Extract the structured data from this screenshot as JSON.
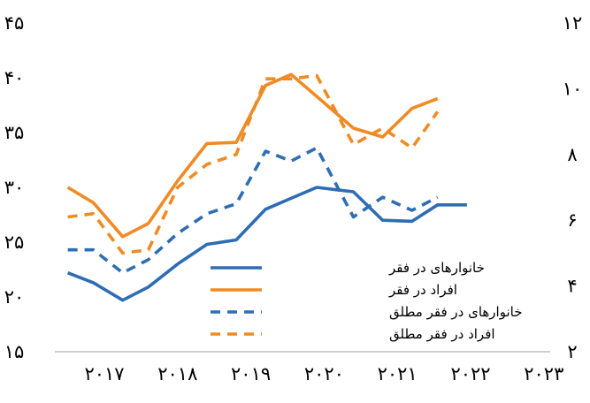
{
  "chart_data": {
    "type": "line",
    "title": "",
    "xlabel": "",
    "ylabel": "",
    "x": [
      2016.5,
      2016.85,
      2017.25,
      2017.6,
      2018.0,
      2018.4,
      2018.8,
      2019.2,
      2019.55,
      2019.9,
      2020.4,
      2020.8,
      2021.2,
      2021.55,
      2021.95,
      2022.4,
      2022.8,
      2023.2
    ],
    "x_ticks": [
      {
        "value": 2017,
        "label": "۲۰۱۷"
      },
      {
        "value": 2018,
        "label": "۲۰۱۸"
      },
      {
        "value": 2019,
        "label": "۲۰۱۹"
      },
      {
        "value": 2020,
        "label": "۲۰۲۰"
      },
      {
        "value": 2021,
        "label": "۲۰۲۱"
      },
      {
        "value": 2022,
        "label": "۲۰۲۲"
      },
      {
        "value": 2023,
        "label": "۲۰۲۳"
      }
    ],
    "y_left": {
      "range": [
        15,
        45
      ],
      "ticks": [
        {
          "value": 45,
          "label": "۴۵"
        },
        {
          "value": 40,
          "label": "۴۰"
        },
        {
          "value": 35,
          "label": "۳۵"
        },
        {
          "value": 30,
          "label": "۳۰"
        },
        {
          "value": 25,
          "label": "۲۵"
        },
        {
          "value": 20,
          "label": "۲۰"
        },
        {
          "value": 15,
          "label": "۱۵"
        }
      ]
    },
    "y_right": {
      "range": [
        2,
        12
      ],
      "ticks": [
        {
          "value": 12,
          "label": "۱۲"
        },
        {
          "value": 10,
          "label": "۱۰"
        },
        {
          "value": 8,
          "label": "۸"
        },
        {
          "value": 6,
          "label": "۶"
        },
        {
          "value": 4,
          "label": "۴"
        },
        {
          "value": 2,
          "label": "۲"
        }
      ]
    },
    "grid": false,
    "legend_position": "bottom-center",
    "series": [
      {
        "name": "خانوارهای در فقر",
        "color": "#2E6DB4",
        "style": "solid",
        "axis": "left",
        "values": [
          22.2,
          21.3,
          19.7,
          20.9,
          23.0,
          24.8,
          25.2,
          28.0,
          29.0,
          30.0,
          29.6,
          27.0,
          26.9,
          28.4,
          28.4,
          null,
          null,
          null
        ]
      },
      {
        "name": "افراد در فقر",
        "color": "#F08A24",
        "style": "solid",
        "axis": "left",
        "values": [
          30.0,
          28.6,
          25.5,
          26.7,
          30.6,
          34.0,
          34.1,
          39.3,
          40.3,
          38.3,
          35.4,
          34.6,
          37.2,
          38.1,
          null,
          null,
          null,
          null
        ]
      },
      {
        "name": "خانوارهای در فقر مطلق",
        "color": "#2E6DB4",
        "style": "dashed",
        "axis": "right",
        "values": [
          5.1,
          5.1,
          4.4,
          4.8,
          5.6,
          6.2,
          6.5,
          8.1,
          7.8,
          8.2,
          6.1,
          6.7,
          6.3,
          6.7,
          null,
          null,
          null,
          null
        ]
      },
      {
        "name": "افراد در فقر مطلق",
        "color": "#F08A24",
        "style": "dashed",
        "axis": "right",
        "values": [
          6.1,
          6.2,
          5.0,
          5.1,
          7.0,
          7.7,
          8.0,
          10.3,
          10.3,
          10.4,
          8.3,
          8.8,
          8.2,
          9.3,
          null,
          null,
          null,
          null
        ]
      }
    ]
  }
}
